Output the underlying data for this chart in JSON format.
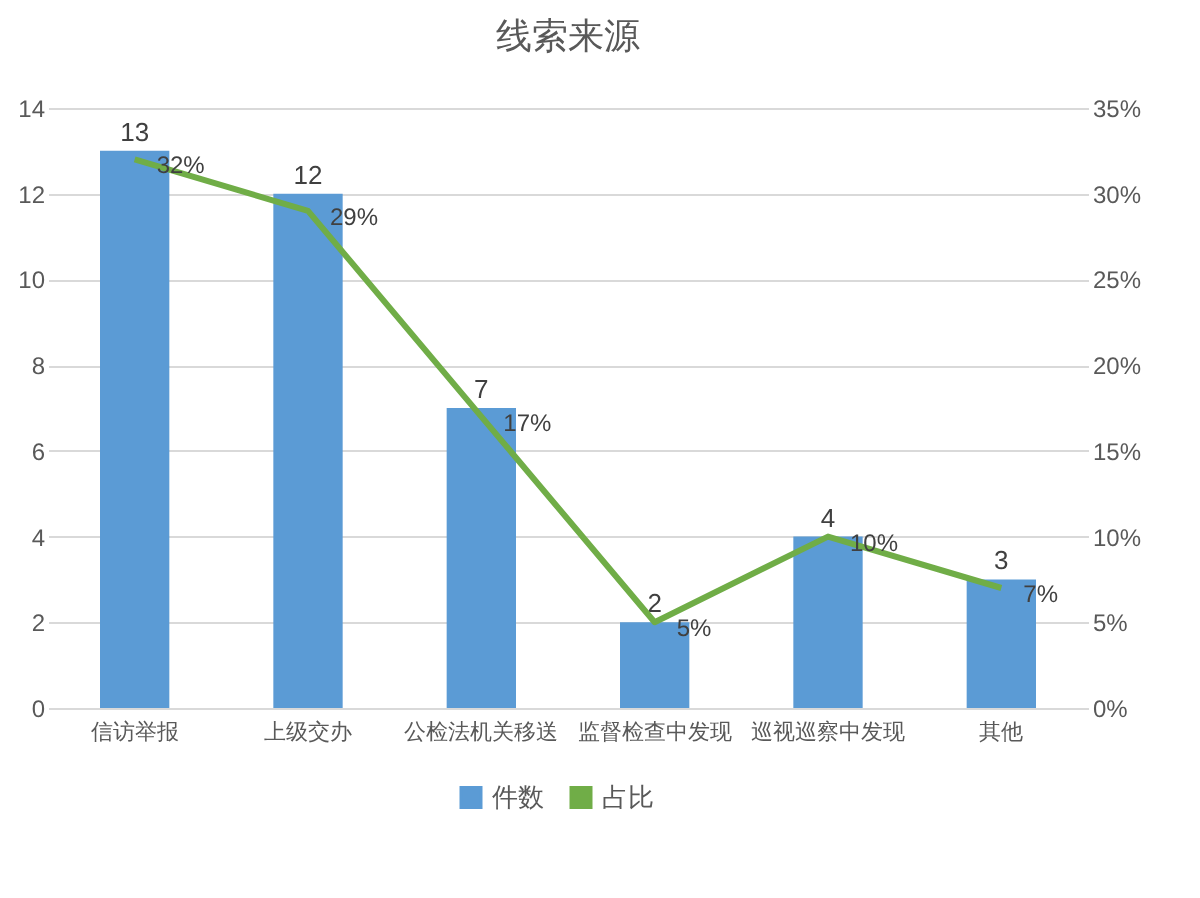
{
  "chart_data": {
    "type": "bar",
    "title": "线索来源",
    "categories": [
      "信访举报",
      "上级交办",
      "公检法机关移送",
      "监督检查中发现",
      "巡视巡察中发现",
      "其他"
    ],
    "series": [
      {
        "name": "件数",
        "color": "#5b9bd5",
        "values": [
          13,
          12,
          7,
          2,
          4,
          3
        ],
        "value_labels": [
          "13",
          "12",
          "7",
          "2",
          "4",
          "3"
        ]
      },
      {
        "name": "占比",
        "type": "line",
        "axis": "y2",
        "color": "#70ad47",
        "values": [
          32,
          29,
          17,
          5,
          10,
          7
        ],
        "value_labels": [
          "32%",
          "29%",
          "17%",
          "5%",
          "10%",
          "7%"
        ]
      }
    ],
    "ylim": [
      0,
      14
    ],
    "yticks": [
      0,
      2,
      4,
      6,
      8,
      10,
      12,
      14
    ],
    "y2lim": [
      0,
      35
    ],
    "y2ticks": [
      {
        "value": 0,
        "label": "0%"
      },
      {
        "value": 5,
        "label": "5%"
      },
      {
        "value": 10,
        "label": "10%"
      },
      {
        "value": 15,
        "label": "15%"
      },
      {
        "value": 20,
        "label": "20%"
      },
      {
        "value": 25,
        "label": "25%"
      },
      {
        "value": 30,
        "label": "30%"
      },
      {
        "value": 35,
        "label": "35%"
      }
    ],
    "grid": "y",
    "legend": "bottom",
    "marker": "none",
    "line_style": "solid"
  }
}
